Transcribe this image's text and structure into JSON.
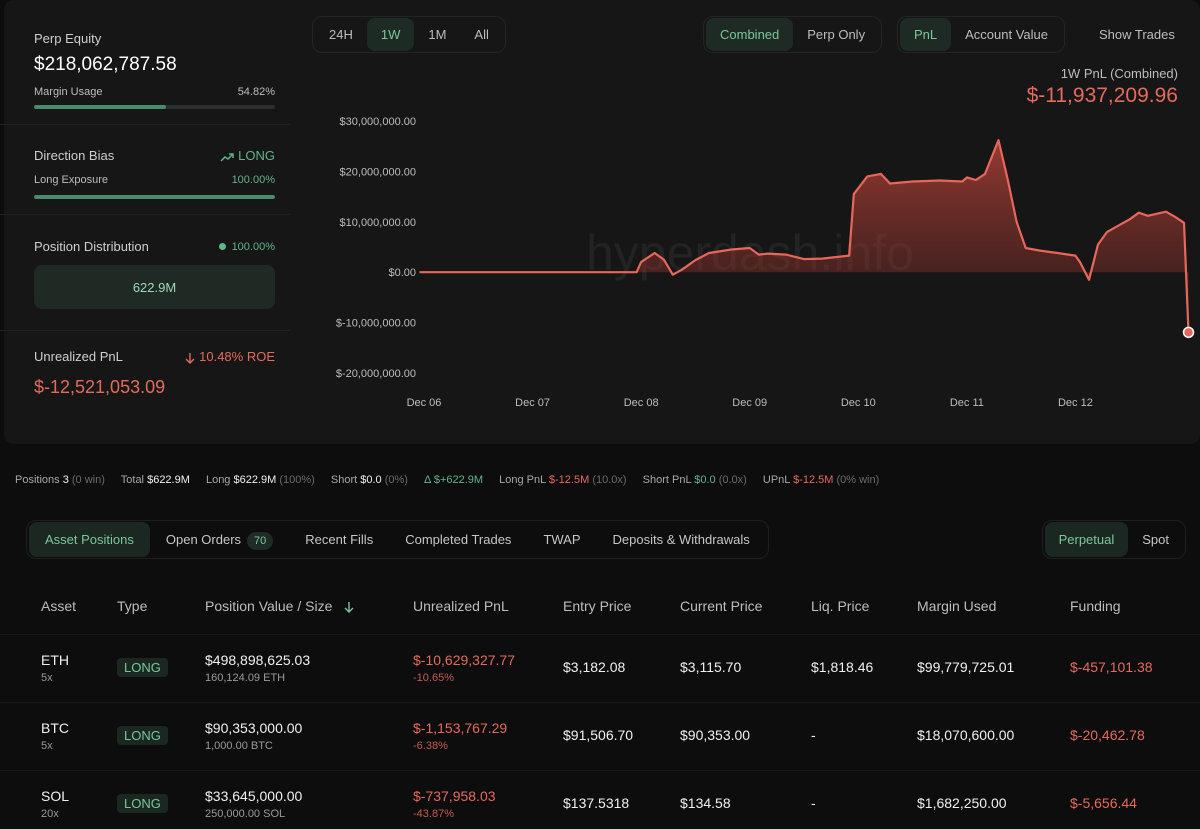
{
  "summary": {
    "perp_equity_label": "Perp Equity",
    "perp_equity_value": "$218,062,787.58",
    "margin_usage_label": "Margin Usage",
    "margin_usage_value": "54.82%",
    "margin_usage_fraction": 0.5482,
    "direction_bias_label": "Direction Bias",
    "direction_bias_value": "LONG",
    "long_exposure_label": "Long Exposure",
    "long_exposure_value": "100.00%",
    "long_exposure_fraction": 1.0,
    "position_distribution_label": "Position Distribution",
    "position_distribution_value": "100.00%",
    "position_distribution_box": "622.9M",
    "unrealized_pnl_label": "Unrealized PnL",
    "unrealized_pnl_roe": "10.48% ROE",
    "unrealized_pnl_value": "$-12,521,053.09"
  },
  "range_tabs": [
    "24H",
    "1W",
    "1M",
    "All"
  ],
  "range_active": "1W",
  "mode_tabs": [
    "Combined",
    "Perp Only"
  ],
  "metric_tabs": [
    "PnL",
    "Account Value"
  ],
  "show_trades": "Show Trades",
  "pnl_caption": "1W PnL (Combined)",
  "pnl_value": "$-11,937,209.96",
  "watermark": "hyperdash.info",
  "colors": {
    "accent_green": "#5fb58a",
    "negative_red": "#e66a5c",
    "line": "#e8675b"
  },
  "chart_data": {
    "type": "area",
    "ylim": [
      -20000000,
      30000000
    ],
    "y_ticks": [
      {
        "v": 30000000,
        "label": "$30,000,000.00"
      },
      {
        "v": 20000000,
        "label": "$20,000,000.00"
      },
      {
        "v": 10000000,
        "label": "$10,000,000.00"
      },
      {
        "v": 0,
        "label": "$0.00"
      },
      {
        "v": -10000000,
        "label": "$-10,000,000.00"
      },
      {
        "v": -20000000,
        "label": "$-20,000,000.00"
      }
    ],
    "xlim": [
      "2025-12-06",
      "2025-12-13"
    ],
    "x_ticks": [
      {
        "x": "2025-12-06",
        "label": "Dec 06"
      },
      {
        "x": "2025-12-07",
        "label": "Dec 07"
      },
      {
        "x": "2025-12-08",
        "label": "Dec 08"
      },
      {
        "x": "2025-12-09",
        "label": "Dec 09"
      },
      {
        "x": "2025-12-10",
        "label": "Dec 10"
      },
      {
        "x": "2025-12-11",
        "label": "Dec 11"
      },
      {
        "x": "2025-12-12",
        "label": "Dec 12"
      }
    ],
    "series": [
      {
        "points": [
          [
            "2025-12-05 23:00",
            0
          ],
          [
            "2025-12-07 00:00",
            0
          ],
          [
            "2025-12-07 23:00",
            0
          ],
          [
            "2025-12-08 00:00",
            2000000
          ],
          [
            "2025-12-08 03:00",
            3800000
          ],
          [
            "2025-12-08 05:00",
            2500000
          ],
          [
            "2025-12-08 07:00",
            -500000
          ],
          [
            "2025-12-08 09:00",
            500000
          ],
          [
            "2025-12-08 12:00",
            2400000
          ],
          [
            "2025-12-08 15:00",
            3800000
          ],
          [
            "2025-12-08 20:00",
            4500000
          ],
          [
            "2025-12-09 00:00",
            4800000
          ],
          [
            "2025-12-09 02:00",
            3500000
          ],
          [
            "2025-12-09 04:00",
            3700000
          ],
          [
            "2025-12-09 08:00",
            3500000
          ],
          [
            "2025-12-09 12:00",
            2600000
          ],
          [
            "2025-12-09 16:00",
            2700000
          ],
          [
            "2025-12-09 22:00",
            3300000
          ],
          [
            "2025-12-09 23:00",
            15500000
          ],
          [
            "2025-12-10 02:00",
            19000000
          ],
          [
            "2025-12-10 05:00",
            19500000
          ],
          [
            "2025-12-10 07:00",
            17600000
          ],
          [
            "2025-12-10 12:00",
            18000000
          ],
          [
            "2025-12-10 18:00",
            18200000
          ],
          [
            "2025-12-10 23:00",
            18000000
          ],
          [
            "2025-12-11 00:00",
            18800000
          ],
          [
            "2025-12-11 02:00",
            18300000
          ],
          [
            "2025-12-11 04:00",
            19500000
          ],
          [
            "2025-12-11 07:00",
            26200000
          ],
          [
            "2025-12-11 09:00",
            18500000
          ],
          [
            "2025-12-11 11:00",
            10000000
          ],
          [
            "2025-12-11 13:00",
            4800000
          ],
          [
            "2025-12-11 16:00",
            4300000
          ],
          [
            "2025-12-11 20:00",
            3800000
          ],
          [
            "2025-12-12 00:00",
            3300000
          ],
          [
            "2025-12-12 01:00",
            2000000
          ],
          [
            "2025-12-12 03:00",
            -1500000
          ],
          [
            "2025-12-12 05:00",
            5500000
          ],
          [
            "2025-12-12 07:00",
            8000000
          ],
          [
            "2025-12-12 10:00",
            9500000
          ],
          [
            "2025-12-12 12:00",
            10500000
          ],
          [
            "2025-12-12 14:00",
            11800000
          ],
          [
            "2025-12-12 16:00",
            11200000
          ],
          [
            "2025-12-12 20:00",
            12000000
          ],
          [
            "2025-12-12 22:00",
            11000000
          ],
          [
            "2025-12-13 00:00",
            9800000
          ],
          [
            "2025-12-13 01:00",
            -11937209.96
          ]
        ]
      }
    ]
  },
  "stats": {
    "positions_label": "Positions",
    "positions_value": "3",
    "positions_note": "(0 win)",
    "total_label": "Total",
    "total_value": "$622.9M",
    "long_label": "Long",
    "long_value": "$622.9M",
    "long_note": "(100%)",
    "short_label": "Short",
    "short_value": "$0.0",
    "short_note": "(0%)",
    "delta_value": "Δ $+622.9M",
    "long_pnl_label": "Long PnL",
    "long_pnl_value": "$-12.5M",
    "long_pnl_note": "(10.0x)",
    "short_pnl_label": "Short PnL",
    "short_pnl_value": "$0.0",
    "short_pnl_note": "(0.0x)",
    "upnl_label": "UPnL",
    "upnl_value": "$-12.5M",
    "upnl_note": "(0% win)"
  },
  "tabs": [
    {
      "label": "Asset Positions"
    },
    {
      "label": "Open Orders",
      "count": "70"
    },
    {
      "label": "Recent Fills"
    },
    {
      "label": "Completed Trades"
    },
    {
      "label": "TWAP"
    },
    {
      "label": "Deposits & Withdrawals"
    }
  ],
  "market_tabs": [
    "Perpetual",
    "Spot"
  ],
  "table": {
    "headers": {
      "asset": "Asset",
      "type": "Type",
      "value": "Position Value / Size",
      "upnl": "Unrealized PnL",
      "entry": "Entry Price",
      "current": "Current Price",
      "liq": "Liq. Price",
      "margin": "Margin Used",
      "funding": "Funding"
    },
    "sort_icon": "arrow-down-icon",
    "rows": [
      {
        "asset": "ETH",
        "lev": "5x",
        "type": "LONG",
        "value": "$498,898,625.03",
        "size": "160,124.09 ETH",
        "upnl": "$-10,629,327.77",
        "upnl_pct": "-10.65%",
        "entry": "$3,182.08",
        "current": "$3,115.70",
        "liq": "$1,818.46",
        "margin": "$99,779,725.01",
        "funding": "$-457,101.38"
      },
      {
        "asset": "BTC",
        "lev": "5x",
        "type": "LONG",
        "value": "$90,353,000.00",
        "size": "1,000.00 BTC",
        "upnl": "$-1,153,767.29",
        "upnl_pct": "-6.38%",
        "entry": "$91,506.70",
        "current": "$90,353.00",
        "liq": "-",
        "margin": "$18,070,600.00",
        "funding": "$-20,462.78"
      },
      {
        "asset": "SOL",
        "lev": "20x",
        "type": "LONG",
        "value": "$33,645,000.00",
        "size": "250,000.00 SOL",
        "upnl": "$-737,958.03",
        "upnl_pct": "-43.87%",
        "entry": "$137.5318",
        "current": "$134.58",
        "liq": "-",
        "margin": "$1,682,250.00",
        "funding": "$-5,656.44"
      }
    ]
  }
}
